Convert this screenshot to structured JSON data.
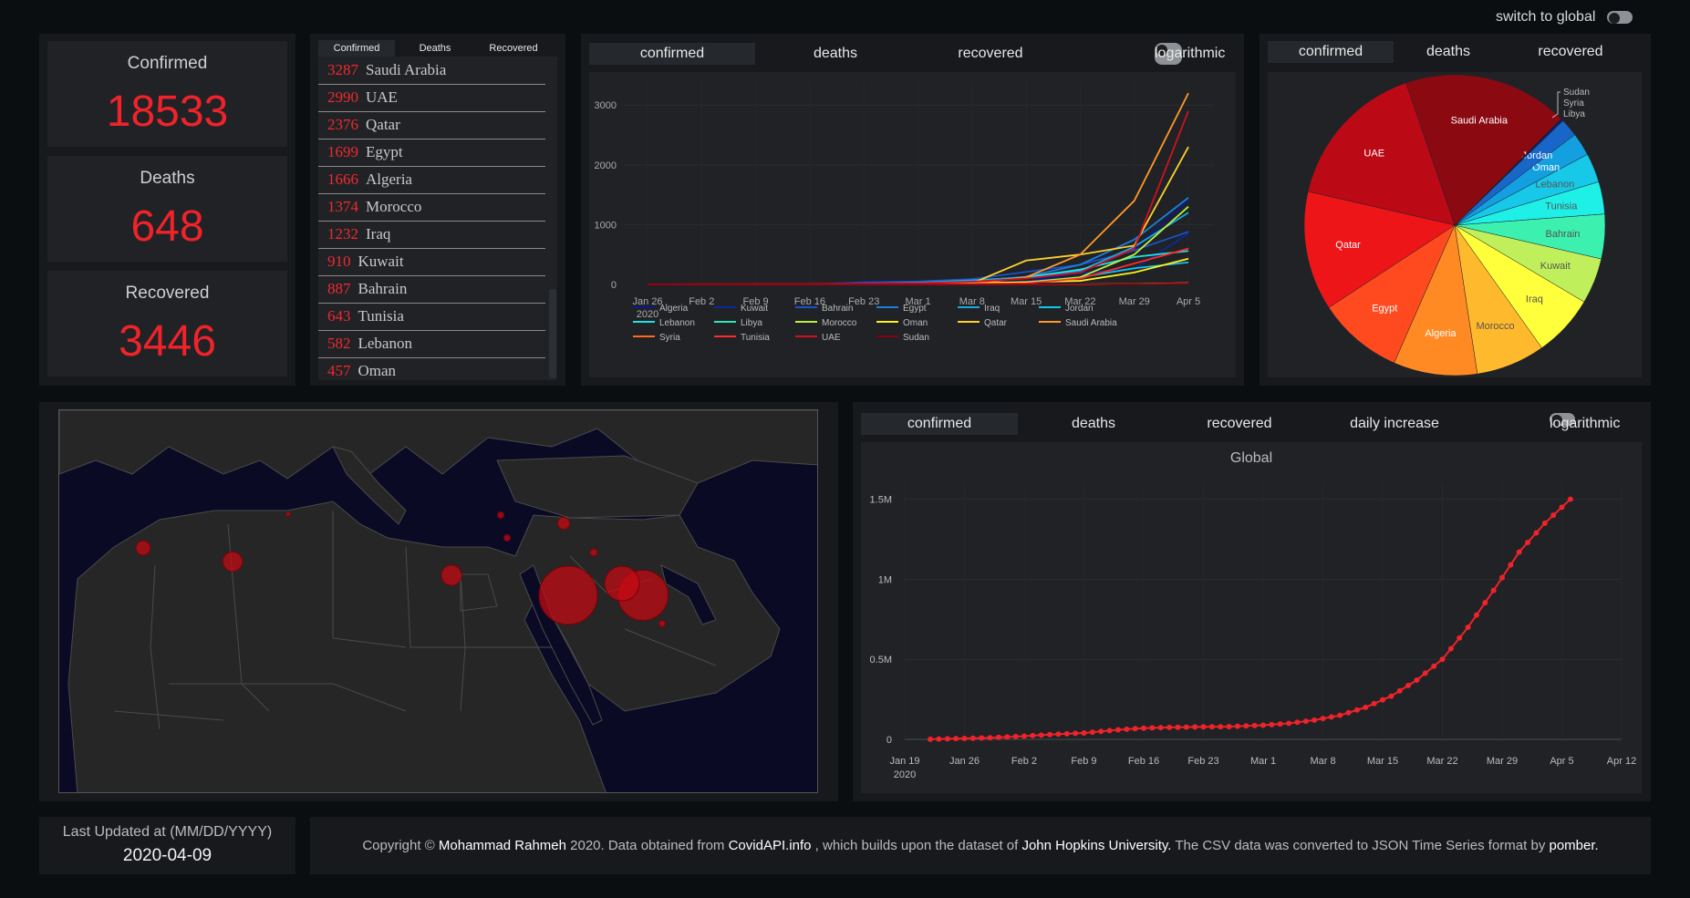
{
  "header": {
    "switch_label": "switch to global"
  },
  "stats": [
    {
      "label": "Confirmed",
      "value": "18533"
    },
    {
      "label": "Deaths",
      "value": "648"
    },
    {
      "label": "Recovered",
      "value": "3446"
    }
  ],
  "country_list": {
    "tabs": [
      "Confirmed",
      "Deaths",
      "Recovered"
    ],
    "rows": [
      {
        "value": "3287",
        "country": "Saudi Arabia"
      },
      {
        "value": "2990",
        "country": "UAE"
      },
      {
        "value": "2376",
        "country": "Qatar"
      },
      {
        "value": "1699",
        "country": "Egypt"
      },
      {
        "value": "1666",
        "country": "Algeria"
      },
      {
        "value": "1374",
        "country": "Morocco"
      },
      {
        "value": "1232",
        "country": "Iraq"
      },
      {
        "value": "910",
        "country": "Kuwait"
      },
      {
        "value": "887",
        "country": "Bahrain"
      },
      {
        "value": "643",
        "country": "Tunisia"
      },
      {
        "value": "582",
        "country": "Lebanon"
      },
      {
        "value": "457",
        "country": "Oman"
      }
    ]
  },
  "line_panel": {
    "tabs": [
      "confirmed",
      "deaths",
      "recovered"
    ],
    "log_label": "logarithmic"
  },
  "pie_panel": {
    "tabs": [
      "confirmed",
      "deaths",
      "recovered"
    ]
  },
  "global_panel": {
    "tabs": [
      "confirmed",
      "deaths",
      "recovered",
      "daily increase"
    ],
    "log_label": "logarithmic"
  },
  "footer": {
    "updated_label": "Last Updated at (MM/DD/YYYY)",
    "updated_date": "2020-04-09",
    "copyright_prefix": "Copyright © ",
    "author": "Mohammad Rahmeh",
    "copyright_mid": " 2020. Data obtained from ",
    "source": "CovidAPI.info",
    "copyright_mid2": " , which builds upon the dataset of ",
    "dataset": "John Hopkins University.",
    "copyright_mid3": " The CSV data was converted to JSON Time Series format by ",
    "converter": "pomber."
  },
  "colors": {
    "accent_red": "#f0222a",
    "panel": "#17191c",
    "inner": "#202225"
  },
  "chart_data": [
    {
      "type": "line",
      "title": "",
      "x": [
        "Jan 26",
        "Feb 2",
        "Feb 9",
        "Feb 16",
        "Feb 23",
        "Mar 1",
        "Mar 8",
        "Mar 15",
        "Mar 22",
        "Mar 29",
        "Apr 5"
      ],
      "x_year_label": "2020",
      "yticks": [
        "0",
        "1000",
        "2000",
        "3000"
      ],
      "ylim": [
        0,
        3400
      ],
      "legend_position": "bottom",
      "series": [
        {
          "name": "Algeria",
          "color": "#0b1a8a",
          "values": [
            0,
            0,
            0,
            0,
            0,
            1,
            20,
            50,
            200,
            600,
            1400
          ]
        },
        {
          "name": "Kuwait",
          "color": "#0a2a9a",
          "values": [
            0,
            0,
            0,
            0,
            40,
            50,
            60,
            110,
            190,
            260,
            850
          ]
        },
        {
          "name": "Bahrain",
          "color": "#1a52c8",
          "values": [
            0,
            0,
            0,
            0,
            30,
            50,
            90,
            210,
            330,
            570,
            880
          ]
        },
        {
          "name": "Egypt",
          "color": "#1c7ee0",
          "values": [
            0,
            0,
            0,
            1,
            1,
            2,
            50,
            130,
            330,
            750,
            1450
          ]
        },
        {
          "name": "Iraq",
          "color": "#18a8e0",
          "values": [
            0,
            0,
            0,
            0,
            10,
            30,
            70,
            120,
            230,
            630,
            1200
          ]
        },
        {
          "name": "Jordan",
          "color": "#10c8e8",
          "values": [
            0,
            0,
            0,
            0,
            0,
            1,
            1,
            40,
            120,
            270,
            370
          ]
        },
        {
          "name": "Lebanon",
          "color": "#22e0e8",
          "values": [
            0,
            0,
            0,
            0,
            1,
            10,
            30,
            120,
            250,
            460,
            560
          ]
        },
        {
          "name": "Libya",
          "color": "#30e8b0",
          "values": [
            0,
            0,
            0,
            0,
            0,
            0,
            0,
            0,
            1,
            10,
            20
          ]
        },
        {
          "name": "Morocco",
          "color": "#b8f040",
          "values": [
            0,
            0,
            0,
            0,
            0,
            1,
            2,
            30,
            120,
            500,
            1300
          ]
        },
        {
          "name": "Oman",
          "color": "#fff020",
          "values": [
            0,
            0,
            0,
            0,
            5,
            10,
            20,
            40,
            60,
            200,
            430
          ]
        },
        {
          "name": "Qatar",
          "color": "#ffd030",
          "values": [
            0,
            0,
            0,
            0,
            0,
            5,
            20,
            400,
            500,
            650,
            2300
          ]
        },
        {
          "name": "Saudi Arabia",
          "color": "#ff9a28",
          "values": [
            0,
            0,
            0,
            0,
            0,
            1,
            10,
            120,
            500,
            1400,
            3200
          ]
        },
        {
          "name": "Syria",
          "color": "#ff6a20",
          "values": [
            0,
            0,
            0,
            0,
            0,
            0,
            0,
            0,
            1,
            10,
            20
          ]
        },
        {
          "name": "Tunisia",
          "color": "#ff2a2a",
          "values": [
            0,
            0,
            0,
            0,
            0,
            1,
            5,
            20,
            100,
            350,
            600
          ]
        },
        {
          "name": "UAE",
          "color": "#d01020",
          "values": [
            0,
            5,
            8,
            10,
            13,
            20,
            45,
            100,
            200,
            600,
            2900
          ]
        },
        {
          "name": "Sudan",
          "color": "#8a0010",
          "values": [
            0,
            0,
            0,
            0,
            0,
            0,
            0,
            1,
            2,
            6,
            14
          ]
        }
      ]
    },
    {
      "type": "pie",
      "slices": [
        {
          "label": "Saudi Arabia",
          "value": 3287,
          "color": "#8b0a12"
        },
        {
          "label": "UAE",
          "value": 2990,
          "color": "#bb0a16"
        },
        {
          "label": "Qatar",
          "value": 2376,
          "color": "#ee1519"
        },
        {
          "label": "Egypt",
          "value": 1699,
          "color": "#ff4a20"
        },
        {
          "label": "Algeria",
          "value": 1666,
          "color": "#ff8a24"
        },
        {
          "label": "Morocco",
          "value": 1374,
          "color": "#ffb92c"
        },
        {
          "label": "Iraq",
          "value": 1232,
          "color": "#ffff3c"
        },
        {
          "label": "Kuwait",
          "value": 910,
          "color": "#bff05c"
        },
        {
          "label": "Bahrain",
          "value": 887,
          "color": "#3cf0b0"
        },
        {
          "label": "Tunisia",
          "value": 643,
          "color": "#1ef0e8"
        },
        {
          "label": "Lebanon",
          "value": 582,
          "color": "#18c8e8"
        },
        {
          "label": "Oman",
          "value": 457,
          "color": "#14a0e0"
        },
        {
          "label": "Jordan",
          "value": 358,
          "color": "#1866c8"
        },
        {
          "label": "Libya",
          "value": 21,
          "color": "#0d2a96"
        },
        {
          "label": "Syria",
          "value": 19,
          "color": "#0a1a7a"
        },
        {
          "label": "Sudan",
          "value": 14,
          "color": "#0a1060"
        }
      ]
    },
    {
      "type": "line",
      "title": "Global",
      "x_ticks": [
        "Jan 19",
        "Jan 26",
        "Feb 2",
        "Feb 9",
        "Feb 16",
        "Feb 23",
        "Mar 1",
        "Mar 8",
        "Mar 15",
        "Mar 22",
        "Mar 29",
        "Apr 5",
        "Apr 12"
      ],
      "x_year_label": "2020",
      "yticks": [
        "0",
        "0.5M",
        "1M",
        "1.5M"
      ],
      "ylim": [
        0,
        1.6
      ],
      "x_range_days": [
        0,
        84
      ],
      "points": [
        [
          3,
          0.0006
        ],
        [
          10,
          0.01
        ],
        [
          14,
          0.02
        ],
        [
          17,
          0.03
        ],
        [
          21,
          0.04
        ],
        [
          25,
          0.06
        ],
        [
          28,
          0.07
        ],
        [
          31,
          0.075
        ],
        [
          35,
          0.078
        ],
        [
          38,
          0.08
        ],
        [
          42,
          0.088
        ],
        [
          45,
          0.1
        ],
        [
          48,
          0.12
        ],
        [
          51,
          0.15
        ],
        [
          54,
          0.2
        ],
        [
          57,
          0.27
        ],
        [
          60,
          0.37
        ],
        [
          63,
          0.5
        ],
        [
          66,
          0.7
        ],
        [
          69,
          0.93
        ],
        [
          72,
          1.17
        ],
        [
          75,
          1.35
        ],
        [
          78,
          1.5
        ]
      ]
    },
    {
      "type": "map",
      "bubbles": [
        {
          "country": "Saudi Arabia",
          "value": 3287
        },
        {
          "country": "UAE",
          "value": 2990
        },
        {
          "country": "Qatar",
          "value": 2376
        },
        {
          "country": "Egypt",
          "value": 1699
        },
        {
          "country": "Algeria",
          "value": 1666
        },
        {
          "country": "Morocco",
          "value": 1374
        },
        {
          "country": "Iraq",
          "value": 1232
        },
        {
          "country": "Kuwait",
          "value": 910
        },
        {
          "country": "Tunisia",
          "value": 643
        },
        {
          "country": "Lebanon",
          "value": 582
        },
        {
          "country": "Jordan",
          "value": 358
        },
        {
          "country": "Oman",
          "value": 457
        }
      ]
    }
  ]
}
